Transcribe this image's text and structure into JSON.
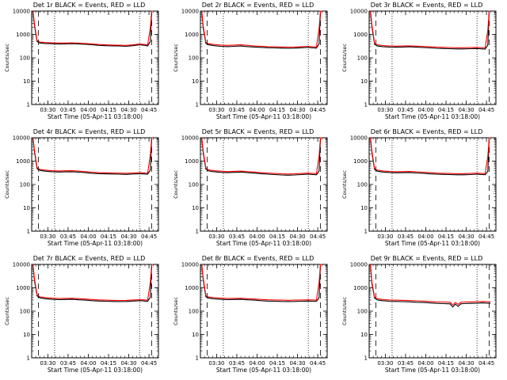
{
  "chart_data": {
    "type": "line",
    "layout": "3x3 grid",
    "y_scale": "log",
    "ylim": [
      1,
      10000
    ],
    "y_ticks": [
      "1",
      "10",
      "100",
      "1000",
      "10000"
    ],
    "ylabel": "Counts/sec",
    "xlabel": "Start Time (05-Apr-11 03:18:00)",
    "x_ticks": [
      "03:30",
      "03:45",
      "04:00",
      "04:15",
      "04:30",
      "04:45"
    ],
    "x_tick_minutes": [
      12,
      27,
      42,
      57,
      72,
      87
    ],
    "xlim_minutes": [
      0,
      94
    ],
    "colors": {
      "events": "#000000",
      "lld": "#ff0000"
    },
    "legend_note": "BLACK = Events, RED = LLD",
    "panels": [
      {
        "title": "Det 1r BLACK = Events, RED = LLD",
        "x": [
          1,
          2,
          4,
          6,
          10,
          15,
          20,
          25,
          30,
          35,
          40,
          45,
          50,
          55,
          60,
          65,
          70,
          75,
          80,
          82,
          84,
          86,
          88,
          89,
          90
        ],
        "events": [
          10000,
          2500,
          500,
          430,
          410,
          400,
          390,
          395,
          400,
          390,
          380,
          360,
          340,
          330,
          325,
          320,
          310,
          330,
          360,
          350,
          340,
          320,
          500,
          10000,
          10000
        ],
        "lld": [
          10000,
          3000,
          550,
          470,
          450,
          440,
          430,
          430,
          440,
          425,
          410,
          390,
          370,
          360,
          350,
          345,
          340,
          360,
          390,
          380,
          370,
          360,
          2000,
          10000,
          10000
        ],
        "dashed_x": [
          5,
          89
        ],
        "dotted_x": [
          17,
          80
        ]
      },
      {
        "title": "Det 2r BLACK = Events, RED = LLD",
        "x": [
          1,
          2,
          4,
          6,
          10,
          15,
          20,
          25,
          30,
          35,
          40,
          45,
          50,
          55,
          60,
          65,
          70,
          75,
          80,
          82,
          84,
          86,
          88,
          89,
          90
        ],
        "events": [
          10000,
          2000,
          420,
          360,
          330,
          310,
          300,
          310,
          320,
          300,
          290,
          280,
          270,
          265,
          260,
          255,
          260,
          270,
          280,
          270,
          265,
          260,
          400,
          10000,
          10000
        ],
        "lld": [
          10000,
          2500,
          470,
          400,
          370,
          350,
          340,
          350,
          360,
          340,
          320,
          310,
          300,
          295,
          290,
          285,
          290,
          300,
          310,
          300,
          295,
          290,
          1800,
          10000,
          10000
        ],
        "dashed_x": [
          5,
          89
        ],
        "dotted_x": [
          17,
          80
        ]
      },
      {
        "title": "Det 3r BLACK = Events, RED = LLD",
        "x": [
          1,
          2,
          4,
          6,
          10,
          15,
          20,
          25,
          30,
          35,
          40,
          45,
          50,
          55,
          60,
          65,
          70,
          75,
          80,
          82,
          84,
          86,
          88,
          89,
          90
        ],
        "events": [
          10000,
          2200,
          380,
          320,
          300,
          290,
          285,
          290,
          295,
          285,
          275,
          265,
          255,
          250,
          245,
          240,
          240,
          245,
          250,
          245,
          240,
          235,
          350,
          10000,
          10000
        ],
        "lld": [
          10000,
          2700,
          430,
          360,
          335,
          320,
          315,
          320,
          325,
          315,
          305,
          295,
          285,
          280,
          275,
          270,
          270,
          275,
          280,
          275,
          270,
          265,
          1500,
          10000,
          10000
        ],
        "dashed_x": [
          5,
          89
        ],
        "dotted_x": [
          17,
          80
        ]
      },
      {
        "title": "Det 4r BLACK = Events, RED = LLD",
        "x": [
          1,
          2,
          4,
          6,
          10,
          15,
          20,
          25,
          30,
          35,
          40,
          45,
          50,
          55,
          60,
          65,
          70,
          75,
          80,
          82,
          84,
          86,
          88,
          89,
          90
        ],
        "events": [
          10000,
          2600,
          480,
          400,
          370,
          350,
          340,
          345,
          350,
          335,
          320,
          300,
          290,
          285,
          280,
          275,
          270,
          280,
          290,
          285,
          280,
          275,
          420,
          10000,
          10000
        ],
        "lld": [
          10000,
          3100,
          530,
          440,
          410,
          390,
          380,
          385,
          390,
          370,
          355,
          335,
          320,
          315,
          310,
          305,
          300,
          310,
          320,
          315,
          310,
          305,
          1900,
          10000,
          10000
        ],
        "dashed_x": [
          5,
          89
        ],
        "dotted_x": [
          17,
          80
        ]
      },
      {
        "title": "Det 5r BLACK = Events, RED = LLD",
        "x": [
          1,
          2,
          4,
          6,
          10,
          15,
          20,
          25,
          30,
          35,
          40,
          45,
          50,
          55,
          60,
          65,
          70,
          75,
          80,
          82,
          84,
          86,
          88,
          89,
          90
        ],
        "events": [
          10000,
          2400,
          460,
          380,
          350,
          330,
          320,
          330,
          340,
          320,
          305,
          290,
          275,
          265,
          255,
          250,
          255,
          265,
          275,
          270,
          265,
          260,
          380,
          10000,
          10000
        ],
        "lld": [
          10000,
          2900,
          510,
          420,
          390,
          370,
          355,
          365,
          375,
          355,
          340,
          320,
          305,
          295,
          285,
          280,
          285,
          295,
          305,
          300,
          295,
          290,
          1700,
          10000,
          10000
        ],
        "dashed_x": [
          5,
          89
        ],
        "dotted_x": [
          17,
          80
        ]
      },
      {
        "title": "Det 6r BLACK = Events, RED = LLD",
        "x": [
          1,
          2,
          4,
          6,
          10,
          15,
          20,
          25,
          30,
          35,
          40,
          45,
          50,
          55,
          60,
          65,
          70,
          75,
          80,
          82,
          84,
          86,
          88,
          89,
          90
        ],
        "events": [
          10000,
          2300,
          440,
          370,
          340,
          325,
          315,
          320,
          325,
          310,
          300,
          285,
          275,
          270,
          265,
          260,
          260,
          265,
          275,
          270,
          265,
          262,
          360,
          10000,
          10000
        ],
        "lld": [
          10000,
          2800,
          490,
          410,
          380,
          360,
          350,
          355,
          360,
          345,
          335,
          320,
          305,
          300,
          295,
          290,
          290,
          295,
          305,
          300,
          295,
          292,
          1600,
          10000,
          10000
        ],
        "dashed_x": [
          5,
          89
        ],
        "dotted_x": [
          17,
          80
        ]
      },
      {
        "title": "Det 7r BLACK = Events, RED = LLD",
        "x": [
          1,
          2,
          4,
          6,
          10,
          15,
          20,
          25,
          30,
          35,
          40,
          45,
          50,
          55,
          60,
          65,
          70,
          75,
          80,
          82,
          84,
          86,
          88,
          89,
          90
        ],
        "events": [
          10000,
          2100,
          450,
          370,
          340,
          320,
          310,
          315,
          320,
          305,
          295,
          280,
          270,
          265,
          260,
          255,
          260,
          270,
          280,
          275,
          270,
          265,
          400,
          10000,
          10000
        ],
        "lld": [
          10000,
          2600,
          500,
          410,
          380,
          360,
          345,
          350,
          355,
          340,
          330,
          315,
          300,
          295,
          290,
          285,
          290,
          300,
          310,
          305,
          300,
          295,
          1800,
          10000,
          10000
        ],
        "dashed_x": [
          5,
          89
        ],
        "dotted_x": [
          17,
          80
        ]
      },
      {
        "title": "Det 8r BLACK = Events, RED = LLD",
        "x": [
          1,
          2,
          4,
          6,
          10,
          15,
          20,
          25,
          30,
          35,
          40,
          45,
          50,
          55,
          60,
          65,
          70,
          75,
          80,
          82,
          84,
          86,
          88,
          89,
          90
        ],
        "events": [
          10000,
          2300,
          420,
          360,
          335,
          320,
          310,
          315,
          320,
          305,
          295,
          280,
          270,
          265,
          260,
          258,
          260,
          265,
          270,
          268,
          265,
          262,
          380,
          10000,
          10000
        ],
        "lld": [
          10000,
          2800,
          470,
          400,
          375,
          360,
          345,
          350,
          355,
          340,
          330,
          315,
          305,
          300,
          295,
          292,
          295,
          300,
          305,
          303,
          300,
          297,
          1700,
          10000,
          10000
        ],
        "dashed_x": [
          5,
          89
        ],
        "dotted_x": [
          17,
          80
        ]
      },
      {
        "title": "Det 9r BLACK = Events, RED = LLD",
        "x": [
          1,
          2,
          4,
          6,
          10,
          15,
          20,
          25,
          30,
          35,
          40,
          45,
          50,
          55,
          60,
          62,
          64,
          66,
          68,
          70,
          75,
          80,
          84,
          88,
          90
        ],
        "events": [
          10000,
          1500,
          360,
          300,
          280,
          265,
          260,
          255,
          250,
          240,
          235,
          225,
          215,
          210,
          205,
          150,
          200,
          160,
          205,
          210,
          215,
          220,
          225,
          220,
          218
        ],
        "lld": [
          10000,
          1800,
          400,
          340,
          315,
          300,
          295,
          290,
          285,
          275,
          270,
          260,
          250,
          245,
          240,
          185,
          235,
          195,
          240,
          245,
          250,
          255,
          260,
          255,
          252
        ],
        "dashed_x": [
          5,
          89
        ],
        "dotted_x": [
          17,
          80
        ]
      }
    ]
  }
}
